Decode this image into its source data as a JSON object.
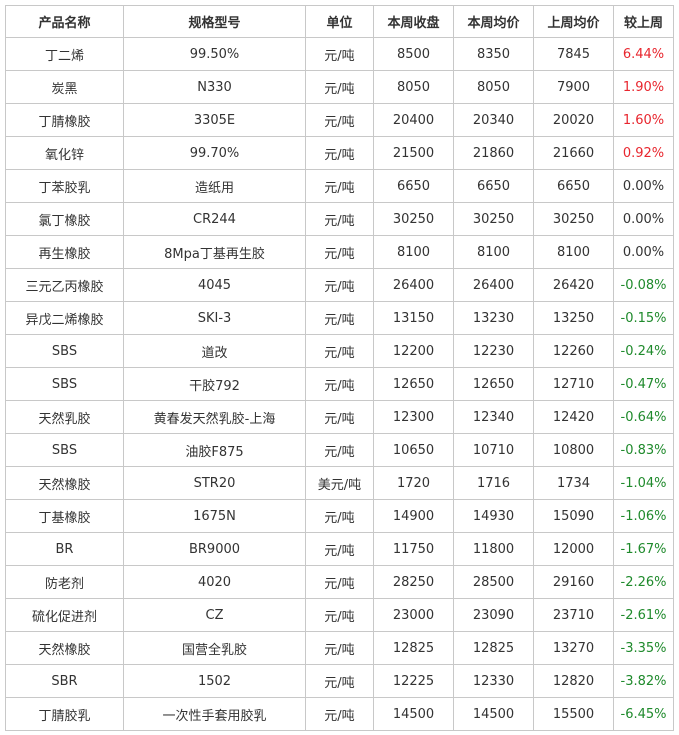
{
  "headers": [
    "产品名称",
    "规格型号",
    "单位",
    "本周收盘",
    "本周均价",
    "上周均价",
    "较上周"
  ],
  "colors": {
    "positive": "#e8262e",
    "negative": "#1f8a2c",
    "neutral": "#333333",
    "border": "#c8c8c8"
  },
  "rows": [
    {
      "name": "丁二烯",
      "spec": "99.50%",
      "unit": "元/吨",
      "close": "8500",
      "avg": "8350",
      "prev": "7845",
      "change": "6.44%",
      "trend": "pos"
    },
    {
      "name": "炭黑",
      "spec": "N330",
      "unit": "元/吨",
      "close": "8050",
      "avg": "8050",
      "prev": "7900",
      "change": "1.90%",
      "trend": "pos"
    },
    {
      "name": "丁腈橡胶",
      "spec": "3305E",
      "unit": "元/吨",
      "close": "20400",
      "avg": "20340",
      "prev": "20020",
      "change": "1.60%",
      "trend": "pos"
    },
    {
      "name": "氧化锌",
      "spec": "99.70%",
      "unit": "元/吨",
      "close": "21500",
      "avg": "21860",
      "prev": "21660",
      "change": "0.92%",
      "trend": "pos"
    },
    {
      "name": "丁苯胶乳",
      "spec": "造纸用",
      "unit": "元/吨",
      "close": "6650",
      "avg": "6650",
      "prev": "6650",
      "change": "0.00%",
      "trend": "zero"
    },
    {
      "name": "氯丁橡胶",
      "spec": "CR244",
      "unit": "元/吨",
      "close": "30250",
      "avg": "30250",
      "prev": "30250",
      "change": "0.00%",
      "trend": "zero"
    },
    {
      "name": "再生橡胶",
      "spec": "8Mpa丁基再生胶",
      "unit": "元/吨",
      "close": "8100",
      "avg": "8100",
      "prev": "8100",
      "change": "0.00%",
      "trend": "zero"
    },
    {
      "name": "三元乙丙橡胶",
      "spec": "4045",
      "unit": "元/吨",
      "close": "26400",
      "avg": "26400",
      "prev": "26420",
      "change": "-0.08%",
      "trend": "neg"
    },
    {
      "name": "异戊二烯橡胶",
      "spec": "SKI-3",
      "unit": "元/吨",
      "close": "13150",
      "avg": "13230",
      "prev": "13250",
      "change": "-0.15%",
      "trend": "neg"
    },
    {
      "name": "SBS",
      "spec": "道改",
      "unit": "元/吨",
      "close": "12200",
      "avg": "12230",
      "prev": "12260",
      "change": "-0.24%",
      "trend": "neg"
    },
    {
      "name": "SBS",
      "spec": "干胶792",
      "unit": "元/吨",
      "close": "12650",
      "avg": "12650",
      "prev": "12710",
      "change": "-0.47%",
      "trend": "neg"
    },
    {
      "name": "天然乳胶",
      "spec": "黄春发天然乳胶-上海",
      "unit": "元/吨",
      "close": "12300",
      "avg": "12340",
      "prev": "12420",
      "change": "-0.64%",
      "trend": "neg"
    },
    {
      "name": "SBS",
      "spec": "油胶F875",
      "unit": "元/吨",
      "close": "10650",
      "avg": "10710",
      "prev": "10800",
      "change": "-0.83%",
      "trend": "neg"
    },
    {
      "name": "天然橡胶",
      "spec": "STR20",
      "unit": "美元/吨",
      "close": "1720",
      "avg": "1716",
      "prev": "1734",
      "change": "-1.04%",
      "trend": "neg"
    },
    {
      "name": "丁基橡胶",
      "spec": "1675N",
      "unit": "元/吨",
      "close": "14900",
      "avg": "14930",
      "prev": "15090",
      "change": "-1.06%",
      "trend": "neg"
    },
    {
      "name": "BR",
      "spec": "BR9000",
      "unit": "元/吨",
      "close": "11750",
      "avg": "11800",
      "prev": "12000",
      "change": "-1.67%",
      "trend": "neg"
    },
    {
      "name": "防老剂",
      "spec": "4020",
      "unit": "元/吨",
      "close": "28250",
      "avg": "28500",
      "prev": "29160",
      "change": "-2.26%",
      "trend": "neg"
    },
    {
      "name": "硫化促进剂",
      "spec": "CZ",
      "unit": "元/吨",
      "close": "23000",
      "avg": "23090",
      "prev": "23710",
      "change": "-2.61%",
      "trend": "neg"
    },
    {
      "name": "天然橡胶",
      "spec": "国营全乳胶",
      "unit": "元/吨",
      "close": "12825",
      "avg": "12825",
      "prev": "13270",
      "change": "-3.35%",
      "trend": "neg"
    },
    {
      "name": "SBR",
      "spec": "1502",
      "unit": "元/吨",
      "close": "12225",
      "avg": "12330",
      "prev": "12820",
      "change": "-3.82%",
      "trend": "neg"
    },
    {
      "name": "丁腈胶乳",
      "spec": "一次性手套用胶乳",
      "unit": "元/吨",
      "close": "14500",
      "avg": "14500",
      "prev": "15500",
      "change": "-6.45%",
      "trend": "neg"
    }
  ]
}
